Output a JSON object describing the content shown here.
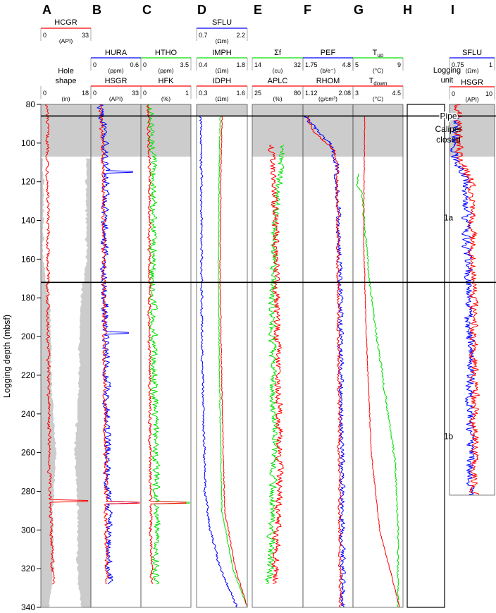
{
  "chart_data": {
    "type": "line",
    "ylabel": "Logging depth (mbsf)",
    "ylim": [
      80,
      340
    ],
    "yticks": [
      80,
      100,
      120,
      140,
      160,
      180,
      200,
      220,
      240,
      260,
      280,
      300,
      320,
      340
    ],
    "units": [
      {
        "label": "Pipe",
        "top": 80,
        "bottom": 86
      },
      {
        "label": "Caliper closed",
        "top": 86,
        "bottom": 107
      },
      {
        "label": "1a",
        "top": 107,
        "bottom": 172
      },
      {
        "label": "1b",
        "top": 172,
        "bottom": 340
      }
    ],
    "logging_unit_header": "Logging unit",
    "colors": {
      "red": "#ff0000",
      "blue": "#0000ff",
      "green": "#00e000",
      "shade": "#cccccc"
    },
    "panels": [
      {
        "letter": "A",
        "headers": [
          {
            "name": "HCGR",
            "unit": "(API)",
            "min": "0",
            "max": "33",
            "color": "#ff0000"
          },
          {
            "name": "Hole shape",
            "unit": "(in)",
            "min": "0",
            "max": "18",
            "color": ""
          }
        ],
        "series": [
          {
            "name": "HCGR",
            "color": "#ff0000",
            "xlim": [
              0,
              33
            ],
            "depth_range": [
              80,
              328
            ],
            "profile": [
              [
                80,
                4
              ],
              [
                105,
                4.5
              ],
              [
                150,
                4.5
              ],
              [
                200,
                4.8
              ],
              [
                250,
                5.5
              ],
              [
                284,
                6
              ],
              [
                300,
                7
              ],
              [
                328,
                8
              ]
            ],
            "noise": 1.1,
            "spikes": [
              [
                285,
                31
              ]
            ]
          }
        ],
        "hole_shape": {
          "units": "(in)",
          "xlim": [
            0,
            18
          ],
          "diameter_profile": [
            [
              110,
              16.5
            ],
            [
              130,
              16
            ],
            [
              160,
              16.5
            ],
            [
              180,
              12
            ],
            [
              200,
              11
            ],
            [
              230,
              10
            ],
            [
              260,
              7
            ],
            [
              290,
              9.5
            ],
            [
              320,
              9
            ],
            [
              340,
              12
            ]
          ]
        }
      },
      {
        "letter": "B",
        "headers": [
          {
            "name": "HURA",
            "unit": "(ppm)",
            "min": "0",
            "max": "0.6",
            "color": "#0000ff"
          },
          {
            "name": "HSGR",
            "unit": "(API)",
            "min": "0",
            "max": "33",
            "color": "#ff0000"
          }
        ],
        "series": [
          {
            "name": "HURA",
            "color": "#0000ff",
            "xlim": [
              0,
              0.6
            ],
            "depth_range": [
              80,
              328
            ],
            "profile": [
              [
                80,
                0.12
              ],
              [
                110,
                0.18
              ],
              [
                170,
                0.16
              ],
              [
                200,
                0.18
              ],
              [
                260,
                0.2
              ],
              [
                328,
                0.22
              ]
            ],
            "noise": 0.045,
            "spikes": [
              [
                115,
                0.5
              ],
              [
                198,
                0.45
              ],
              [
                286,
                0.55
              ]
            ]
          },
          {
            "name": "HSGR",
            "color": "#ff0000",
            "xlim": [
              0,
              33
            ],
            "depth_range": [
              80,
              328
            ],
            "profile": [
              [
                80,
                6
              ],
              [
                110,
                8
              ],
              [
                170,
                8.5
              ],
              [
                250,
                9.5
              ],
              [
                300,
                10
              ],
              [
                328,
                11
              ]
            ],
            "noise": 1.3,
            "spikes": [
              [
                286,
                32
              ]
            ]
          }
        ]
      },
      {
        "letter": "C",
        "headers": [
          {
            "name": "HTHO",
            "unit": "(ppm)",
            "min": "0",
            "max": "3.5",
            "color": "#00e000"
          },
          {
            "name": "HFK",
            "unit": "(%)",
            "min": "0",
            "max": "1",
            "color": "#ff0000"
          }
        ],
        "series": [
          {
            "name": "HTHO",
            "color": "#00e000",
            "xlim": [
              0,
              3.5
            ],
            "depth_range": [
              80,
              328
            ],
            "profile": [
              [
                80,
                0.6
              ],
              [
                120,
                0.9
              ],
              [
                170,
                0.8
              ],
              [
                250,
                1.0
              ],
              [
                300,
                1.1
              ],
              [
                328,
                1.0
              ]
            ],
            "noise": 0.25,
            "spikes": [
              [
                286,
                3.4
              ]
            ]
          },
          {
            "name": "HFK",
            "color": "#ff0000",
            "xlim": [
              0,
              1
            ],
            "depth_range": [
              80,
              328
            ],
            "profile": [
              [
                80,
                0.15
              ],
              [
                120,
                0.17
              ],
              [
                200,
                0.17
              ],
              [
                300,
                0.2
              ],
              [
                328,
                0.22
              ]
            ],
            "noise": 0.03,
            "spikes": [
              [
                286,
                0.9
              ]
            ]
          }
        ]
      },
      {
        "letter": "D",
        "headers": [
          {
            "name": "SFLU",
            "unit": "(Ωm)",
            "min": "0.7",
            "max": "2.2",
            "color": "#0000ff"
          },
          {
            "name": "IMPH",
            "unit": "(Ωm)",
            "min": "0.4",
            "max": "1.8",
            "color": "#00e000"
          },
          {
            "name": "IDPH",
            "unit": "(Ωm)",
            "min": "0.3",
            "max": "1.6",
            "color": "#ff0000"
          }
        ],
        "series": [
          {
            "name": "SFLU",
            "color": "#0000ff",
            "xlim": [
              0.7,
              2.2
            ],
            "depth_range": [
              86,
              340
            ],
            "profile": [
              [
                86,
                0.82
              ],
              [
                120,
                0.84
              ],
              [
                200,
                0.86
              ],
              [
                280,
                0.95
              ],
              [
                300,
                1.1
              ],
              [
                320,
                1.4
              ],
              [
                340,
                1.9
              ]
            ],
            "noise": 0.035
          },
          {
            "name": "IMPH",
            "color": "#00e000",
            "xlim": [
              0.4,
              1.8
            ],
            "depth_range": [
              86,
              340
            ],
            "profile": [
              [
                86,
                1.05
              ],
              [
                120,
                1.02
              ],
              [
                170,
                1.0
              ],
              [
                240,
                1.05
              ],
              [
                290,
                1.1
              ],
              [
                320,
                1.4
              ],
              [
                340,
                1.8
              ]
            ],
            "noise": 0.012
          },
          {
            "name": "IDPH",
            "color": "#ff0000",
            "xlim": [
              0.3,
              1.6
            ],
            "depth_range": [
              86,
              340
            ],
            "profile": [
              [
                86,
                0.95
              ],
              [
                120,
                0.92
              ],
              [
                170,
                0.9
              ],
              [
                240,
                0.96
              ],
              [
                290,
                1.02
              ],
              [
                320,
                1.3
              ],
              [
                340,
                1.6
              ]
            ],
            "noise": 0.012
          }
        ]
      },
      {
        "letter": "E",
        "headers": [
          {
            "name": "Σf",
            "unit": "(cu)",
            "min": "14",
            "max": "32",
            "color": "#00e000"
          },
          {
            "name": "APLC",
            "unit": "(%)",
            "min": "25",
            "max": "80",
            "color": "#ff0000"
          }
        ],
        "series": [
          {
            "name": "Σf",
            "color": "#00e000",
            "xlim": [
              14,
              32
            ],
            "depth_range": [
              101,
              328
            ],
            "profile": [
              [
                101,
                25
              ],
              [
                140,
                22
              ],
              [
                200,
                21
              ],
              [
                260,
                22
              ],
              [
                300,
                21
              ],
              [
                328,
                20
              ]
            ],
            "noise": 1.3
          },
          {
            "name": "APLC",
            "color": "#ff0000",
            "xlim": [
              25,
              80
            ],
            "depth_range": [
              101,
              328
            ],
            "profile": [
              [
                101,
                45
              ],
              [
                140,
                50
              ],
              [
                200,
                52
              ],
              [
                260,
                55
              ],
              [
                300,
                52
              ],
              [
                328,
                50
              ]
            ],
            "noise": 3.8
          }
        ]
      },
      {
        "letter": "F",
        "headers": [
          {
            "name": "PEF",
            "unit": "(b/e⁻)",
            "min": "1.75",
            "max": "4.8",
            "color": "#0000ff"
          },
          {
            "name": "RHOM",
            "unit": "(g/cm³)",
            "min": "1.12",
            "max": "2.08",
            "color": "#ff0000"
          }
        ],
        "series": [
          {
            "name": "PEF",
            "color": "#0000ff",
            "xlim": [
              1.75,
              4.8
            ],
            "depth_range": [
              86,
              340
            ],
            "profile": [
              [
                86,
                1.9
              ],
              [
                92,
                2.4
              ],
              [
                100,
                3.4
              ],
              [
                110,
                3.8
              ],
              [
                170,
                4.0
              ],
              [
                250,
                4.1
              ],
              [
                340,
                4.2
              ]
            ],
            "noise": 0.16
          },
          {
            "name": "RHOM",
            "color": "#ff0000",
            "xlim": [
              1.12,
              2.08
            ],
            "depth_range": [
              86,
              340
            ],
            "profile": [
              [
                86,
                1.2
              ],
              [
                95,
                1.35
              ],
              [
                103,
                1.7
              ],
              [
                110,
                1.78
              ],
              [
                200,
                1.8
              ],
              [
                340,
                1.84
              ]
            ],
            "noise": 0.03
          }
        ]
      },
      {
        "letter": "G",
        "headers": [
          {
            "name": "Tup",
            "unit": "(°C)",
            "min": "5",
            "max": "9",
            "color": "#00e000"
          },
          {
            "name": "Tdown",
            "unit": "(°C)",
            "min": "3",
            "max": "4.5",
            "color": "#ff0000"
          }
        ],
        "series": [
          {
            "name": "Tup",
            "color": "#00e000",
            "xlim": [
              5,
              9
            ],
            "depth_range": [
              116,
              340
            ],
            "profile": [
              [
                116,
                5.4
              ],
              [
                122,
                5.3
              ],
              [
                125,
                5.7
              ],
              [
                170,
                6.3
              ],
              [
                200,
                6.9
              ],
              [
                266,
                8.4
              ],
              [
                300,
                8.6
              ],
              [
                340,
                8.6
              ]
            ],
            "noise": 0.07
          },
          {
            "name": "Tdown",
            "color": "#ff0000",
            "xlim": [
              3,
              4.5
            ],
            "depth_range": [
              86,
              340
            ],
            "profile": [
              [
                86,
                3.35
              ],
              [
                150,
                3.32
              ],
              [
                200,
                3.4
              ],
              [
                260,
                3.55
              ],
              [
                300,
                3.8
              ],
              [
                340,
                4.4
              ]
            ],
            "noise": 0.01
          }
        ]
      },
      {
        "letter": "I",
        "headers": [
          {
            "name": "SFLU",
            "unit": "(Ωm)",
            "min": "0.75",
            "max": "1",
            "color": "#0000ff"
          },
          {
            "name": "HSGR",
            "unit": "(API)",
            "min": "0",
            "max": "10",
            "color": "#ff0000"
          }
        ],
        "series": [
          {
            "name": "SFLU",
            "color": "#0000ff",
            "xlim": [
              0.75,
              1
            ],
            "depth_range": [
              86,
              282
            ],
            "profile": [
              [
                86,
                0.78
              ],
              [
                107,
                0.78
              ],
              [
                120,
                0.84
              ],
              [
                200,
                0.86
              ],
              [
                282,
                0.87
              ]
            ],
            "noise": 0.025
          },
          {
            "name": "HSGR",
            "color": "#ff0000",
            "xlim": [
              0,
              10
            ],
            "depth_range": [
              80,
              282
            ],
            "profile": [
              [
                80,
                2
              ],
              [
                107,
                2.2
              ],
              [
                120,
                5
              ],
              [
                200,
                5.5
              ],
              [
                282,
                5.5
              ]
            ],
            "noise": 0.9
          }
        ]
      }
    ]
  }
}
